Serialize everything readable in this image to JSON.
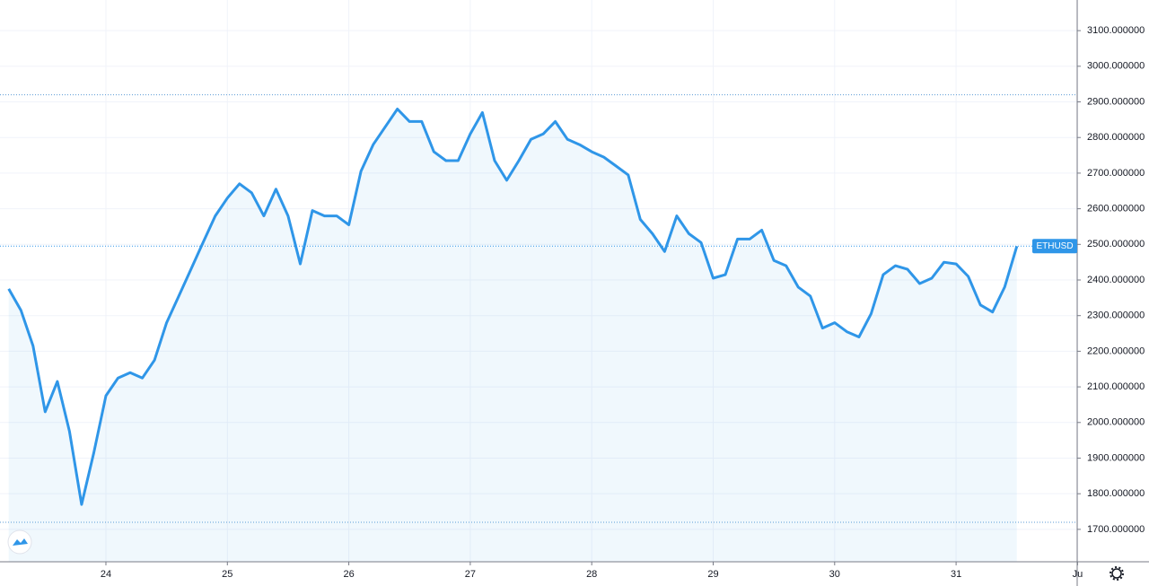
{
  "chart_data": {
    "type": "area",
    "x": [
      23.2,
      23.3,
      23.4,
      23.5,
      23.6,
      23.7,
      23.8,
      23.9,
      24.0,
      24.1,
      24.2,
      24.3,
      24.4,
      24.5,
      24.6,
      24.7,
      24.8,
      24.9,
      25.0,
      25.1,
      25.2,
      25.3,
      25.4,
      25.5,
      25.6,
      25.7,
      25.8,
      25.9,
      26.0,
      26.1,
      26.2,
      26.3,
      26.4,
      26.5,
      26.6,
      26.7,
      26.8,
      26.9,
      27.0,
      27.1,
      27.2,
      27.3,
      27.4,
      27.5,
      27.6,
      27.7,
      27.8,
      27.9,
      28.0,
      28.1,
      28.2,
      28.3,
      28.4,
      28.5,
      28.6,
      28.7,
      28.8,
      28.9,
      29.0,
      29.1,
      29.2,
      29.3,
      29.4,
      29.5,
      29.6,
      29.7,
      29.8,
      29.9,
      30.0,
      30.1,
      30.2,
      30.3,
      30.4,
      30.5,
      30.6,
      30.7,
      30.8,
      30.9,
      31.0,
      31.1,
      31.2,
      31.3,
      31.4,
      31.5
    ],
    "series": [
      {
        "name": "ETHUSD",
        "color": "#2f96e8",
        "values": [
          2375,
          2315,
          2215,
          2030,
          2115,
          1975,
          1770,
          1915,
          2075,
          2125,
          2140,
          2125,
          2175,
          2280,
          2355,
          2430,
          2505,
          2580,
          2630,
          2670,
          2645,
          2580,
          2655,
          2580,
          2445,
          2595,
          2580,
          2580,
          2555,
          2705,
          2780,
          2830,
          2880,
          2845,
          2845,
          2760,
          2735,
          2735,
          2810,
          2870,
          2735,
          2680,
          2735,
          2795,
          2810,
          2845,
          2795,
          2780,
          2760,
          2745,
          2720,
          2695,
          2570,
          2530,
          2480,
          2580,
          2530,
          2505,
          2405,
          2415,
          2515,
          2515,
          2540,
          2455,
          2440,
          2380,
          2355,
          2265,
          2280,
          2255,
          2240,
          2305,
          2415,
          2440,
          2430,
          2390,
          2405,
          2450,
          2445,
          2410,
          2330,
          2310,
          2380,
          2495
        ]
      }
    ],
    "xlim": [
      23.128,
      31.997
    ],
    "xticks": [
      24,
      25,
      26,
      27,
      28,
      29,
      30,
      31,
      {
        "value": 32,
        "label": "Ju"
      }
    ],
    "ylim": [
      1609,
      3186
    ],
    "yticks": [
      {
        "value": 1700,
        "label": "1700.000000"
      },
      {
        "value": 1800,
        "label": "1800.000000"
      },
      {
        "value": 1900,
        "label": "1900.000000"
      },
      {
        "value": 2000,
        "label": "2000.000000"
      },
      {
        "value": 2100,
        "label": "2100.000000"
      },
      {
        "value": 2200,
        "label": "2200.000000"
      },
      {
        "value": 2300,
        "label": "2300.000000"
      },
      {
        "value": 2400,
        "label": "2400.000000"
      },
      {
        "value": 2500,
        "label": "2500.000000"
      },
      {
        "value": 2600,
        "label": "2600.000000"
      },
      {
        "value": 2700,
        "label": "2700.000000"
      },
      {
        "value": 2800,
        "label": "2800.000000"
      },
      {
        "value": 2900,
        "label": "2900.000000"
      },
      {
        "value": 3000,
        "label": "3000.000000"
      },
      {
        "value": 3100,
        "label": "3100.000000"
      }
    ],
    "reference_lines": [
      2920,
      1720
    ],
    "grid": true
  }
}
